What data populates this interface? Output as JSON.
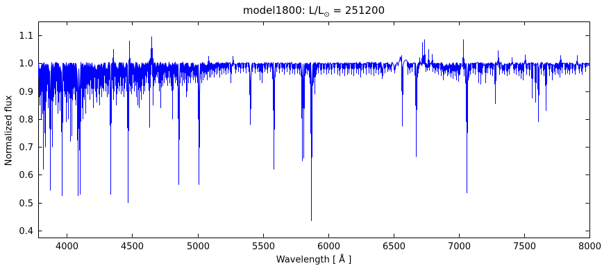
{
  "window": {
    "title_prefix": "model1800: L/L",
    "title_sub": "⊙",
    "title_suffix": " = 251200"
  },
  "chart_data": {
    "type": "line",
    "title": "model1800: L/L⊙ = 251200",
    "xlabel": "Wavelength [ Å ]",
    "ylabel": "Normalized flux",
    "xlim": [
      3780,
      8000
    ],
    "ylim": [
      0.375,
      1.15
    ],
    "xticks": [
      4000,
      4500,
      5000,
      5500,
      6000,
      6500,
      7000,
      7500,
      8000
    ],
    "yticks": [
      0.4,
      0.5,
      0.6,
      0.7,
      0.8,
      0.9,
      1.0,
      1.1
    ],
    "grid": false,
    "legend": "none",
    "line_color": "#0000ff",
    "axis_color": "#000000",
    "background": "#ffffff",
    "baseline_flux": 1.0,
    "absorption_lines": [
      [
        3788,
        0.88
      ],
      [
        3795,
        0.85
      ],
      [
        3802,
        0.8
      ],
      [
        3809,
        0.9
      ],
      [
        3815,
        0.86
      ],
      [
        3822,
        0.62
      ],
      [
        3829,
        0.75
      ],
      [
        3836,
        0.7
      ],
      [
        3842,
        0.88
      ],
      [
        3849,
        0.9
      ],
      [
        3856,
        0.84
      ],
      [
        3861,
        0.88
      ],
      [
        3866,
        0.78
      ],
      [
        3872,
        0.545,
        2
      ],
      [
        3879,
        0.86
      ],
      [
        3885,
        0.9
      ],
      [
        3890,
        0.7
      ],
      [
        3897,
        0.88
      ],
      [
        3904,
        0.91
      ],
      [
        3911,
        0.89
      ],
      [
        3918,
        0.85
      ],
      [
        3924,
        0.9
      ],
      [
        3931,
        0.82
      ],
      [
        3938,
        0.86
      ],
      [
        3945,
        0.83
      ],
      [
        3953,
        0.9
      ],
      [
        3962,
        0.525,
        2
      ],
      [
        3971,
        0.87
      ],
      [
        3979,
        0.9
      ],
      [
        3986,
        0.88
      ],
      [
        3993,
        0.79
      ],
      [
        4001,
        0.86
      ],
      [
        4009,
        0.8
      ],
      [
        4018,
        0.9
      ],
      [
        4026,
        0.72
      ],
      [
        4033,
        0.88
      ],
      [
        4040,
        0.74
      ],
      [
        4048,
        0.91
      ],
      [
        4056,
        0.89
      ],
      [
        4063,
        0.87
      ],
      [
        4070,
        0.85
      ],
      [
        4077,
        0.9
      ],
      [
        4084,
        0.525,
        2
      ],
      [
        4091,
        0.8
      ],
      [
        4099,
        0.53,
        2
      ],
      [
        4107,
        0.88
      ],
      [
        4115,
        0.84
      ],
      [
        4122,
        0.8
      ],
      [
        4129,
        0.9
      ],
      [
        4135,
        0.87
      ],
      [
        4144,
        0.82
      ],
      [
        4152,
        0.91
      ],
      [
        4160,
        0.89
      ],
      [
        4168,
        0.92
      ],
      [
        4176,
        0.87
      ],
      [
        4184,
        0.91
      ],
      [
        4192,
        0.89
      ],
      [
        4200,
        0.84
      ],
      [
        4208,
        0.92
      ],
      [
        4216,
        0.9
      ],
      [
        4222,
        0.88
      ],
      [
        4229,
        0.86
      ],
      [
        4236,
        0.91
      ],
      [
        4244,
        0.89
      ],
      [
        4252,
        0.85
      ],
      [
        4260,
        0.92
      ],
      [
        4268,
        0.88
      ],
      [
        4276,
        0.91
      ],
      [
        4284,
        0.9
      ],
      [
        4292,
        0.93
      ],
      [
        4300,
        0.9
      ],
      [
        4308,
        0.88
      ],
      [
        4315,
        0.92
      ],
      [
        4322,
        0.89
      ],
      [
        4335,
        0.53,
        2
      ],
      [
        4343,
        0.88
      ],
      [
        4350,
        0.91
      ],
      [
        4357,
        0.87
      ],
      [
        4364,
        0.9
      ],
      [
        4371,
        0.92
      ],
      [
        4378,
        0.85
      ],
      [
        4384,
        0.89
      ],
      [
        4391,
        0.91
      ],
      [
        4398,
        0.9
      ],
      [
        4406,
        0.92
      ],
      [
        4413,
        0.89
      ],
      [
        4420,
        0.92
      ],
      [
        4428,
        0.9
      ],
      [
        4435,
        0.88
      ],
      [
        4442,
        0.91
      ],
      [
        4449,
        0.93
      ],
      [
        4456,
        0.9
      ],
      [
        4462,
        0.92
      ],
      [
        4469,
        0.5,
        2
      ],
      [
        4482,
        0.9
      ],
      [
        4489,
        0.92
      ],
      [
        4494,
        0.89
      ],
      [
        4502,
        0.91
      ],
      [
        4510,
        0.93
      ],
      [
        4518,
        0.9
      ],
      [
        4526,
        0.92
      ],
      [
        4533,
        0.88
      ],
      [
        4541,
        0.85
      ],
      [
        4548,
        0.91
      ],
      [
        4555,
        0.84
      ],
      [
        4562,
        0.9
      ],
      [
        4570,
        0.87
      ],
      [
        4577,
        0.92
      ],
      [
        4584,
        0.89
      ],
      [
        4591,
        0.92
      ],
      [
        4598,
        0.9
      ],
      [
        4606,
        0.93
      ],
      [
        4613,
        0.95
      ],
      [
        4621,
        0.93
      ],
      [
        4628,
        0.95
      ],
      [
        4634,
        0.77
      ],
      [
        4642,
        0.96
      ],
      [
        4656,
        0.96
      ],
      [
        4662,
        0.85
      ],
      [
        4669,
        0.94
      ],
      [
        4677,
        0.93
      ],
      [
        4685,
        0.96
      ],
      [
        4693,
        0.95
      ],
      [
        4702,
        0.93
      ],
      [
        4710,
        0.9
      ],
      [
        4718,
        0.84
      ],
      [
        4727,
        0.94
      ],
      [
        4736,
        0.92
      ],
      [
        4745,
        0.93
      ],
      [
        4753,
        0.95
      ],
      [
        4761,
        0.94
      ],
      [
        4769,
        0.92
      ],
      [
        4777,
        0.95
      ],
      [
        4785,
        0.93
      ],
      [
        4791,
        0.95
      ],
      [
        4798,
        0.92
      ],
      [
        4806,
        0.8
      ],
      [
        4814,
        0.93
      ],
      [
        4822,
        0.95
      ],
      [
        4831,
        0.93
      ],
      [
        4840,
        0.94
      ],
      [
        4848,
        0.92
      ],
      [
        4858,
        0.565,
        2.5
      ],
      [
        4868,
        0.93
      ],
      [
        4876,
        0.95
      ],
      [
        4884,
        0.92
      ],
      [
        4892,
        0.94
      ],
      [
        4901,
        0.93
      ],
      [
        4914,
        0.88
      ],
      [
        4922,
        0.9
      ],
      [
        4931,
        0.93
      ],
      [
        4939,
        0.95
      ],
      [
        4948,
        0.93
      ],
      [
        4958,
        0.95
      ],
      [
        4968,
        0.94
      ],
      [
        4977,
        0.95
      ],
      [
        4986,
        0.93
      ],
      [
        4996,
        0.95
      ],
      [
        5004,
        0.94
      ],
      [
        5013,
        0.565,
        2.5
      ],
      [
        5030,
        0.93
      ],
      [
        5041,
        0.94
      ],
      [
        5055,
        0.95
      ],
      [
        5065,
        0.96
      ],
      [
        5074,
        0.94
      ],
      [
        5091,
        0.95
      ],
      [
        5101,
        0.95
      ],
      [
        5113,
        0.96
      ],
      [
        5126,
        0.95
      ],
      [
        5141,
        0.96
      ],
      [
        5156,
        0.965
      ],
      [
        5171,
        0.95
      ],
      [
        5186,
        0.96
      ],
      [
        5201,
        0.965
      ],
      [
        5216,
        0.96
      ],
      [
        5236,
        0.965
      ],
      [
        5257,
        0.93
      ],
      [
        5291,
        0.965
      ],
      [
        5311,
        0.97
      ],
      [
        5331,
        0.965
      ],
      [
        5351,
        0.97
      ],
      [
        5371,
        0.965
      ],
      [
        5391,
        0.97
      ],
      [
        5406,
        0.78,
        3.5
      ],
      [
        5422,
        0.97
      ],
      [
        5441,
        0.965
      ],
      [
        5461,
        0.97
      ],
      [
        5479,
        0.94
      ],
      [
        5496,
        0.93
      ],
      [
        5516,
        0.97
      ],
      [
        5536,
        0.965
      ],
      [
        5556,
        0.97
      ],
      [
        5572,
        0.96
      ],
      [
        5587,
        0.62,
        2
      ],
      [
        5606,
        0.97
      ],
      [
        5626,
        0.965
      ],
      [
        5646,
        0.97
      ],
      [
        5666,
        0.96
      ],
      [
        5686,
        0.97
      ],
      [
        5706,
        0.96
      ],
      [
        5726,
        0.965
      ],
      [
        5746,
        0.96
      ],
      [
        5766,
        0.965
      ],
      [
        5783,
        0.96
      ],
      [
        5800,
        0.65,
        1.8
      ],
      [
        5814,
        0.66,
        1.8
      ],
      [
        5828,
        0.965
      ],
      [
        5842,
        0.96
      ],
      [
        5853,
        0.95
      ],
      [
        5874,
        0.435,
        1.8
      ],
      [
        5889,
        0.93
      ],
      [
        5896,
        0.89
      ],
      [
        5906,
        0.96
      ],
      [
        5926,
        0.965
      ],
      [
        5946,
        0.96
      ],
      [
        5966,
        0.965
      ],
      [
        5986,
        0.96
      ],
      [
        6006,
        0.965
      ],
      [
        6026,
        0.96
      ],
      [
        6046,
        0.965
      ],
      [
        6071,
        0.96
      ],
      [
        6091,
        0.955
      ],
      [
        6111,
        0.965
      ],
      [
        6126,
        0.955
      ],
      [
        6146,
        0.96
      ],
      [
        6161,
        0.965
      ],
      [
        6181,
        0.96
      ],
      [
        6196,
        0.955
      ],
      [
        6216,
        0.965
      ],
      [
        6233,
        0.96
      ],
      [
        6251,
        0.95
      ],
      [
        6271,
        0.965
      ],
      [
        6291,
        0.96
      ],
      [
        6311,
        0.965
      ],
      [
        6326,
        0.96
      ],
      [
        6348,
        0.955
      ],
      [
        6366,
        0.965
      ],
      [
        6386,
        0.96
      ],
      [
        6401,
        0.965
      ],
      [
        6416,
        0.945,
        3.5
      ],
      [
        6436,
        0.965
      ],
      [
        6456,
        0.97
      ],
      [
        6467,
        0.975
      ],
      [
        6481,
        0.97
      ],
      [
        6509,
        0.965,
        4.5
      ],
      [
        6570,
        0.775,
        1.5
      ],
      [
        6608,
        0.96
      ],
      [
        6626,
        0.965
      ],
      [
        6641,
        0.97
      ],
      [
        6675,
        0.665,
        1.8
      ],
      [
        6689,
        0.965
      ],
      [
        6746,
        0.97
      ],
      [
        6757,
        0.975
      ],
      [
        6776,
        0.975
      ],
      [
        6801,
        0.97
      ],
      [
        6816,
        0.965
      ],
      [
        6831,
        0.97
      ],
      [
        6846,
        0.96
      ],
      [
        6863,
        0.955
      ],
      [
        6881,
        0.94
      ],
      [
        6896,
        0.965
      ],
      [
        6911,
        0.955
      ],
      [
        6926,
        0.96
      ],
      [
        6941,
        0.95
      ],
      [
        6956,
        0.945
      ],
      [
        6971,
        0.955
      ],
      [
        6984,
        0.94
      ],
      [
        6996,
        0.935
      ],
      [
        7011,
        0.96
      ],
      [
        7041,
        0.955
      ],
      [
        7064,
        0.535,
        1.8
      ],
      [
        7076,
        0.95
      ],
      [
        7091,
        0.96
      ],
      [
        7111,
        0.965
      ],
      [
        7126,
        0.96
      ],
      [
        7151,
        0.93
      ],
      [
        7166,
        0.925
      ],
      [
        7181,
        0.96
      ],
      [
        7203,
        0.93
      ],
      [
        7221,
        0.965
      ],
      [
        7241,
        0.96
      ],
      [
        7259,
        0.955
      ],
      [
        7280,
        0.855
      ],
      [
        7311,
        0.96
      ],
      [
        7331,
        0.965
      ],
      [
        7351,
        0.96
      ],
      [
        7369,
        0.955
      ],
      [
        7386,
        0.96
      ],
      [
        7421,
        0.965
      ],
      [
        7441,
        0.96
      ],
      [
        7459,
        0.955
      ],
      [
        7478,
        0.945
      ],
      [
        7491,
        0.94
      ],
      [
        7521,
        0.96
      ],
      [
        7541,
        0.955
      ],
      [
        7563,
        0.875
      ],
      [
        7589,
        0.86
      ],
      [
        7612,
        0.79,
        1.5
      ],
      [
        7633,
        0.96
      ],
      [
        7651,
        0.955
      ],
      [
        7669,
        0.83
      ],
      [
        7695,
        0.955
      ],
      [
        7718,
        0.94
      ],
      [
        7736,
        0.96
      ],
      [
        7751,
        0.965
      ],
      [
        7766,
        0.96
      ],
      [
        7776,
        0.95
      ],
      [
        7791,
        0.965
      ],
      [
        7814,
        0.96
      ],
      [
        7831,
        0.965
      ],
      [
        7851,
        0.96
      ],
      [
        7871,
        0.965
      ],
      [
        7891,
        0.96
      ],
      [
        7921,
        0.965
      ],
      [
        7946,
        0.96
      ],
      [
        7971,
        0.97
      ]
    ],
    "emission_peaks": [
      [
        4355,
        1.05
      ],
      [
        4477,
        1.08
      ],
      [
        4647,
        1.095
      ],
      [
        5085,
        1.025
      ],
      [
        5270,
        1.025
      ],
      [
        6560,
        1.028
      ],
      [
        6703,
        1.02
      ],
      [
        6724,
        1.075
      ],
      [
        6740,
        1.085
      ],
      [
        6767,
        1.05
      ],
      [
        6795,
        1.032
      ],
      [
        7035,
        1.085
      ],
      [
        7300,
        1.045
      ],
      [
        7407,
        1.02
      ],
      [
        7508,
        1.03
      ],
      [
        7782,
        1.028
      ],
      [
        7906,
        1.028
      ]
    ],
    "broad_emission_bumps": [
      [
        4648,
        0.022,
        14
      ],
      [
        6552,
        0.02,
        6
      ],
      [
        6590,
        0.012,
        16
      ]
    ],
    "noise_regions": [
      [
        3780,
        4320,
        0.034
      ],
      [
        4320,
        4700,
        0.027
      ],
      [
        4700,
        5060,
        0.02
      ],
      [
        5060,
        5320,
        0.013
      ],
      [
        5320,
        6450,
        0.008
      ],
      [
        6450,
        6800,
        0.011
      ],
      [
        6800,
        7100,
        0.015
      ],
      [
        7100,
        8000,
        0.012
      ]
    ]
  }
}
